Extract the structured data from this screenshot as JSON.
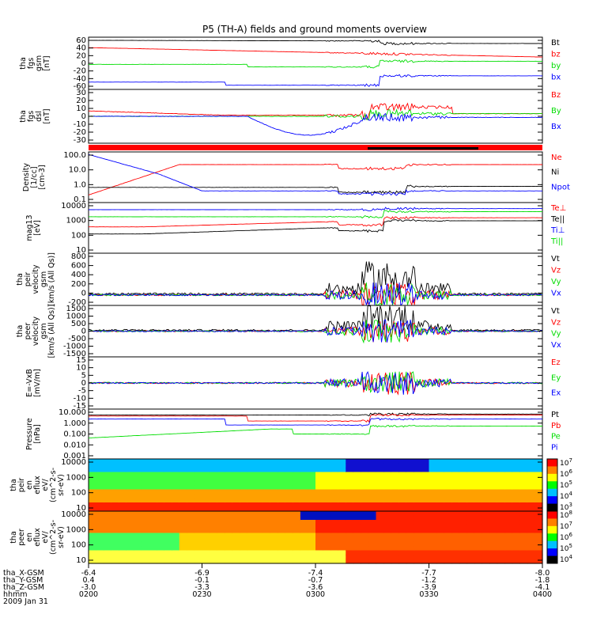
{
  "title": "P5 (TH-A) fields and ground moments overview",
  "colors": {
    "black": "#000000",
    "red": "#ff0000",
    "green": "#00dd00",
    "blue": "#0000ff",
    "status_red": "#ff0000",
    "status_black": "#000000"
  },
  "chart_data": [
    {
      "id": "p1",
      "type": "line",
      "ylabel": [
        "tha",
        "fgs",
        "gsm",
        "[nT]"
      ],
      "yticks": [
        "60",
        "40",
        "20",
        "0",
        "-20",
        "-40",
        "-60"
      ],
      "ylim": [
        -60,
        60
      ],
      "log": false,
      "series": [
        {
          "name": "Bt",
          "color": "#000000"
        },
        {
          "name": "bz",
          "color": "#ff0000"
        },
        {
          "name": "by",
          "color": "#00dd00"
        },
        {
          "name": "bx",
          "color": "#0000ff"
        }
      ]
    },
    {
      "id": "p2",
      "type": "line",
      "ylabel": [
        "tha",
        "fgs",
        "dsl",
        "[nT]"
      ],
      "yticks": [
        "30",
        "20",
        "10",
        "0",
        "-10",
        "-20",
        "-30"
      ],
      "ylim": [
        -30,
        30
      ],
      "log": false,
      "series": [
        {
          "name": "Bz",
          "color": "#ff0000"
        },
        {
          "name": "By",
          "color": "#00dd00"
        },
        {
          "name": "Bx",
          "color": "#0000ff"
        }
      ]
    },
    {
      "id": "p3",
      "type": "line",
      "ylabel": [
        "Density",
        "[1/cc]",
        "[cm-3]"
      ],
      "yticks": [
        "100.0",
        "10.0",
        "1.0",
        "0.1"
      ],
      "ylim": [
        0.1,
        100
      ],
      "log": true,
      "series": [
        {
          "name": "Ne",
          "color": "#ff0000"
        },
        {
          "name": "Ni",
          "color": "#000000"
        },
        {
          "name": "Npot",
          "color": "#0000ff"
        }
      ]
    },
    {
      "id": "p4",
      "type": "line",
      "ylabel": [
        "mag13",
        "[eV]"
      ],
      "yticks": [
        "10000",
        "1000",
        "100",
        "10"
      ],
      "ylim": [
        10,
        10000
      ],
      "log": true,
      "series": [
        {
          "name": "Te⊥",
          "color": "#ff0000"
        },
        {
          "name": "Te||",
          "color": "#000000"
        },
        {
          "name": "Ti⊥",
          "color": "#0000ff"
        },
        {
          "name": "Ti||",
          "color": "#00dd00"
        }
      ]
    },
    {
      "id": "p5",
      "type": "line",
      "ylabel": [
        "tha",
        "peir",
        "velocity",
        "gsm",
        "[km/s (All Qs)]"
      ],
      "yticks": [
        "800",
        "600",
        "400",
        "200",
        "0",
        "-200"
      ],
      "ylim": [
        -200,
        800
      ],
      "log": false,
      "series": [
        {
          "name": "Vt",
          "color": "#000000"
        },
        {
          "name": "Vz",
          "color": "#ff0000"
        },
        {
          "name": "Vy",
          "color": "#00dd00"
        },
        {
          "name": "Vx",
          "color": "#0000ff"
        }
      ]
    },
    {
      "id": "p6",
      "type": "line",
      "ylabel": [
        "tha",
        "peer",
        "velocity",
        "gsm",
        "[km/s (All Qs)]"
      ],
      "yticks": [
        "1500",
        "1000",
        "500",
        "0",
        "-500",
        "-1000",
        "-1500"
      ],
      "ylim": [
        -1500,
        1500
      ],
      "log": false,
      "series": [
        {
          "name": "Vt",
          "color": "#000000"
        },
        {
          "name": "Vz",
          "color": "#ff0000"
        },
        {
          "name": "Vy",
          "color": "#00dd00"
        },
        {
          "name": "Vx",
          "color": "#0000ff"
        }
      ]
    },
    {
      "id": "p7",
      "type": "line",
      "ylabel": [
        "E=-VxB",
        "[mV/m]"
      ],
      "yticks": [
        "15",
        "10",
        "5",
        "0",
        "-5",
        "-10",
        "-15"
      ],
      "ylim": [
        -15,
        15
      ],
      "log": false,
      "series": [
        {
          "name": "Ez",
          "color": "#ff0000"
        },
        {
          "name": "Ey",
          "color": "#00dd00"
        },
        {
          "name": "Ex",
          "color": "#0000ff"
        }
      ]
    },
    {
      "id": "p8",
      "type": "line",
      "ylabel": [
        "Pressure",
        "[nPa]"
      ],
      "yticks": [
        "10.000",
        "1.000",
        "0.100",
        "0.010",
        "0.001"
      ],
      "ylim": [
        0.001,
        10
      ],
      "log": true,
      "series": [
        {
          "name": "Pt",
          "color": "#000000"
        },
        {
          "name": "Pb",
          "color": "#ff0000"
        },
        {
          "name": "Pe",
          "color": "#00dd00"
        },
        {
          "name": "Pi",
          "color": "#0000ff"
        }
      ]
    },
    {
      "id": "s1",
      "type": "heatmap",
      "ylabel": [
        "tha",
        "peir",
        "en",
        "eflux",
        "eV/",
        "(cm^2-s-",
        "sr-eV)"
      ],
      "yticks": [
        "10000",
        "1000",
        "100",
        "10"
      ],
      "ylim": [
        10,
        10000
      ],
      "log": true,
      "colorbar": [
        "10^7",
        "10^6",
        "10^5",
        "10^4",
        "10^3"
      ]
    },
    {
      "id": "s2",
      "type": "heatmap",
      "ylabel": [
        "tha",
        "peer",
        "en",
        "eflux",
        "eV/",
        "(cm^2-s-",
        "sr-eV)"
      ],
      "yticks": [
        "10000",
        "1000",
        "100",
        "10"
      ],
      "ylim": [
        10,
        10000
      ],
      "log": true,
      "colorbar": [
        "10^8",
        "10^7",
        "10^6",
        "10^5",
        "10^4"
      ]
    }
  ],
  "time_axis": {
    "rows": [
      {
        "label": "tha_X-GSM",
        "values": [
          "-6.4",
          "-6.9",
          "-7.4",
          "-7.7",
          "-8.0"
        ]
      },
      {
        "label": "tha_Y-GSM",
        "values": [
          "0.4",
          "-0.1",
          "-0.7",
          "-1.2",
          "-1.8"
        ]
      },
      {
        "label": "tha_Z-GSM",
        "values": [
          "-3.0",
          "-3.3",
          "-3.6",
          "-3.9",
          "-4.1"
        ]
      },
      {
        "label": "hhmm",
        "values": [
          "0200",
          "0230",
          "0300",
          "0330",
          "0400"
        ]
      }
    ],
    "date": "2009 Jan 31",
    "range": [
      "0200",
      "0400"
    ]
  }
}
